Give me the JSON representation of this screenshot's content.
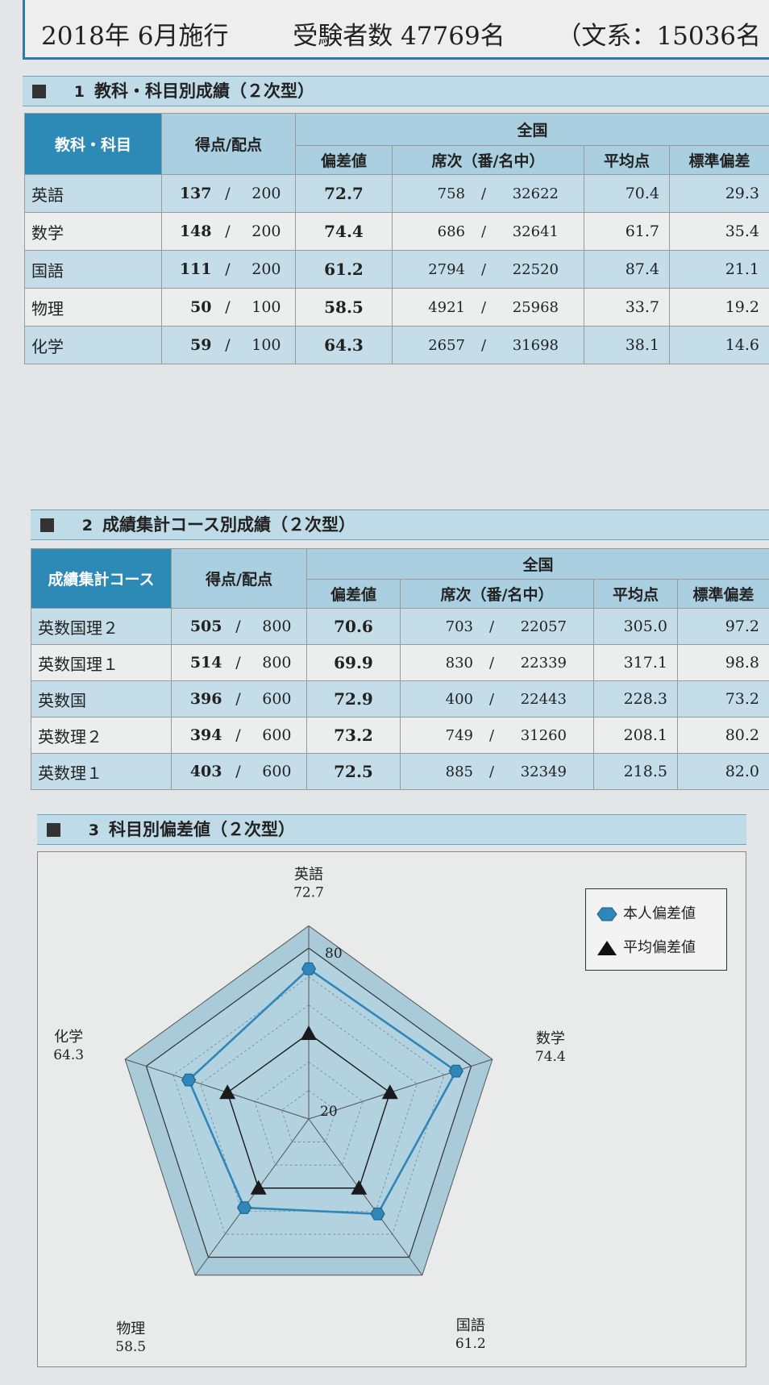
{
  "header": {
    "date": "2018年 6月施行",
    "examinees_label": "受験者数 47769名",
    "humanities": "（文系：15036名"
  },
  "section1": {
    "number": "1",
    "title": "教科・科目別成績（２次型）",
    "headers": {
      "subject": "教科・科目",
      "score": "得点/配点",
      "national": "全国",
      "deviation": "偏差値",
      "rank": "席次（番/名中）",
      "average": "平均点",
      "stddev": "標準偏差"
    },
    "rows": [
      {
        "name": "英語",
        "score": "137",
        "max": "200",
        "deviation": "72.7",
        "rank": "758",
        "total": "32622",
        "average": "70.4",
        "stddev": "29.3"
      },
      {
        "name": "数学",
        "score": "148",
        "max": "200",
        "deviation": "74.4",
        "rank": "686",
        "total": "32641",
        "average": "61.7",
        "stddev": "35.4"
      },
      {
        "name": "国語",
        "score": "111",
        "max": "200",
        "deviation": "61.2",
        "rank": "2794",
        "total": "22520",
        "average": "87.4",
        "stddev": "21.1"
      },
      {
        "name": "物理",
        "score": "50",
        "max": "100",
        "deviation": "58.5",
        "rank": "4921",
        "total": "25968",
        "average": "33.7",
        "stddev": "19.2"
      },
      {
        "name": "化学",
        "score": "59",
        "max": "100",
        "deviation": "64.3",
        "rank": "2657",
        "total": "31698",
        "average": "38.1",
        "stddev": "14.6"
      }
    ]
  },
  "section2": {
    "number": "2",
    "title": "成績集計コース別成績（２次型）",
    "headers": {
      "course": "成績集計コース",
      "score": "得点/配点",
      "national": "全国",
      "deviation": "偏差値",
      "rank": "席次（番/名中）",
      "average": "平均点",
      "stddev": "標準偏差"
    },
    "rows": [
      {
        "name": "英数国理２",
        "score": "505",
        "max": "800",
        "deviation": "70.6",
        "rank": "703",
        "total": "22057",
        "average": "305.0",
        "stddev": "97.2"
      },
      {
        "name": "英数国理１",
        "score": "514",
        "max": "800",
        "deviation": "69.9",
        "rank": "830",
        "total": "22339",
        "average": "317.1",
        "stddev": "98.8"
      },
      {
        "name": "英数国",
        "score": "396",
        "max": "600",
        "deviation": "72.9",
        "rank": "400",
        "total": "22443",
        "average": "228.3",
        "stddev": "73.2"
      },
      {
        "name": "英数理２",
        "score": "394",
        "max": "600",
        "deviation": "73.2",
        "rank": "749",
        "total": "31260",
        "average": "208.1",
        "stddev": "80.2"
      },
      {
        "name": "英数理１",
        "score": "403",
        "max": "600",
        "deviation": "72.5",
        "rank": "885",
        "total": "32349",
        "average": "218.5",
        "stddev": "82.0"
      }
    ]
  },
  "section3": {
    "number": "3",
    "title": "科目別偏差値（２次型）"
  },
  "chart_data": {
    "type": "radar",
    "axes": [
      "英語",
      "数学",
      "国語",
      "物理",
      "化学"
    ],
    "range": [
      20,
      80
    ],
    "scale_labels": [
      "80",
      "20"
    ],
    "series": [
      {
        "name": "本人偏差値",
        "values": [
          72.7,
          74.4,
          61.2,
          58.5,
          64.3
        ],
        "value_labels": [
          "72.7",
          "74.4",
          "61.2",
          "58.5",
          "64.3"
        ],
        "marker": "hexagon",
        "color": "#2f86b8"
      },
      {
        "name": "平均偏差値",
        "values": [
          50,
          50,
          50,
          50,
          50
        ],
        "marker": "triangle",
        "color": "#1a1a1a"
      }
    ],
    "fill_color": "#a9cbd9"
  }
}
